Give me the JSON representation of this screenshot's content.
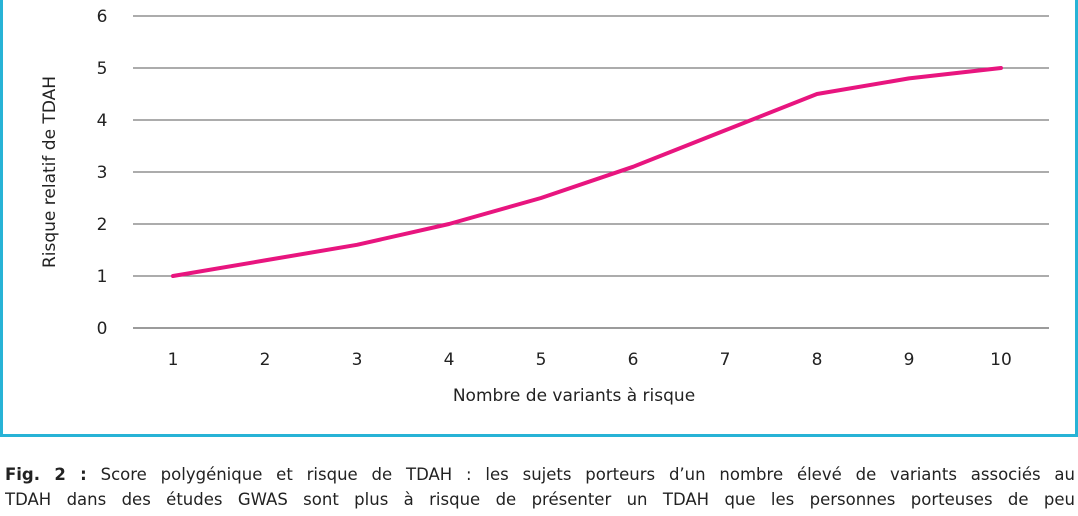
{
  "chart_data": {
    "type": "line",
    "x": [
      1,
      2,
      3,
      4,
      5,
      6,
      7,
      8,
      9,
      10
    ],
    "series": [
      {
        "values": [
          1.0,
          1.3,
          1.6,
          2.0,
          2.5,
          3.1,
          3.8,
          4.5,
          4.8,
          5.0
        ],
        "color": "#e8157f"
      }
    ],
    "xlabel": "Nombre de variants à risque",
    "ylabel": "Risque relatif de TDAH",
    "xticks": [
      "1",
      "2",
      "3",
      "4",
      "5",
      "6",
      "7",
      "8",
      "9",
      "10"
    ],
    "yticks": [
      "0",
      "1",
      "2",
      "3",
      "4",
      "5",
      "6"
    ],
    "ylim": [
      0,
      6
    ],
    "grid": true
  },
  "caption": {
    "lead": "Fig. 2 :",
    "line1": " Score polygénique et risque de TDAH : les sujets porteurs d’un nombre élevé de variants associés au",
    "line2": "TDAH dans des études GWAS sont plus à risque de présenter un TDAH que les personnes porteuses de peu"
  },
  "colors": {
    "frame": "#27b3d6",
    "line": "#e8157f",
    "grid": "#7a7a7a"
  }
}
